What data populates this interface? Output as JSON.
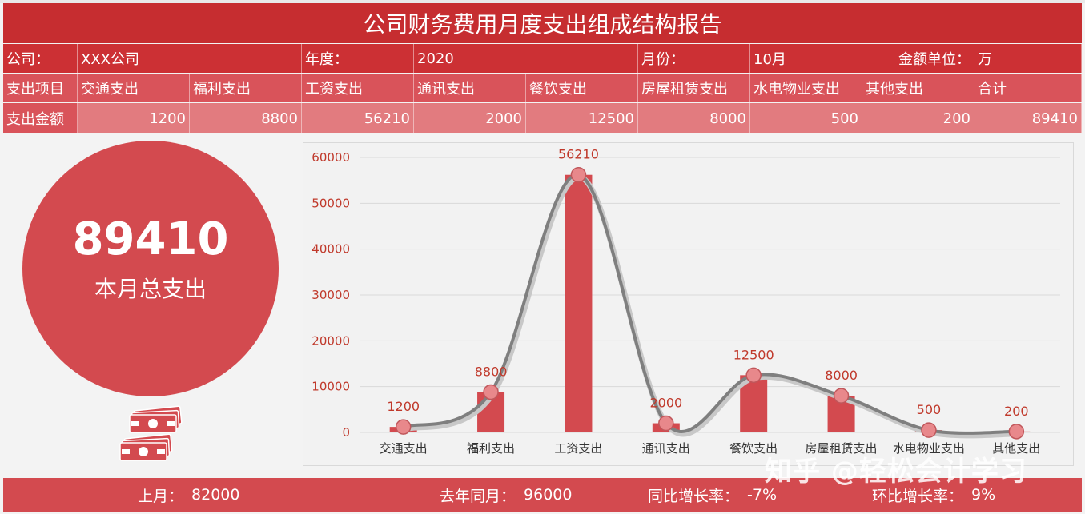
{
  "title": "公司财务费用月度支出组成结构报告",
  "info": {
    "company_label": "公司：",
    "company_value": "XXX公司",
    "year_label": "年度：",
    "year_value": "2020",
    "month_label": "月份：",
    "month_value": "10月",
    "unit_label": "金额单位：",
    "unit_value": "万"
  },
  "items_header_label": "支出项目",
  "items": [
    "交通支出",
    "福利支出",
    "工资支出",
    "通讯支出",
    "餐饮支出",
    "房屋租赁支出",
    "水电物业支出",
    "其他支出",
    "合计"
  ],
  "amounts_label": "支出金额",
  "amounts": [
    "1200",
    "8800",
    "56210",
    "2000",
    "12500",
    "8000",
    "500",
    "200",
    "89410"
  ],
  "total": {
    "value": "89410",
    "label": "本月总支出"
  },
  "chart_data": {
    "type": "bar",
    "categories": [
      "交通支出",
      "福利支出",
      "工资支出",
      "通讯支出",
      "餐饮支出",
      "房屋租赁支出",
      "水电物业支出",
      "其他支出"
    ],
    "values": [
      1200,
      8800,
      56210,
      2000,
      12500,
      8000,
      500,
      200
    ],
    "data_labels": [
      "1200",
      "8800",
      "56210",
      "2000",
      "12500",
      "8000",
      "500",
      "200"
    ],
    "yticks": [
      "0",
      "10000",
      "20000",
      "30000",
      "40000",
      "50000",
      "60000"
    ],
    "ylim": [
      0,
      60000
    ],
    "overlay": "smoothed line with markers",
    "grid": true,
    "bar_color": "#d34a4f",
    "line_color": "#7f7f7f",
    "marker_color": "#e8888b"
  },
  "footer": {
    "last_month_label": "上月：",
    "last_month_value": "82000",
    "last_year_label": "去年同月：",
    "last_year_value": "96000",
    "yoy_label": "同比增长率：",
    "yoy_value": "-7%",
    "mom_label": "环比增长率：",
    "mom_value": "9%"
  },
  "watermark": "知乎 @轻松会计学习",
  "icons": [
    "money-stack-icon",
    "money-stack-icon"
  ]
}
